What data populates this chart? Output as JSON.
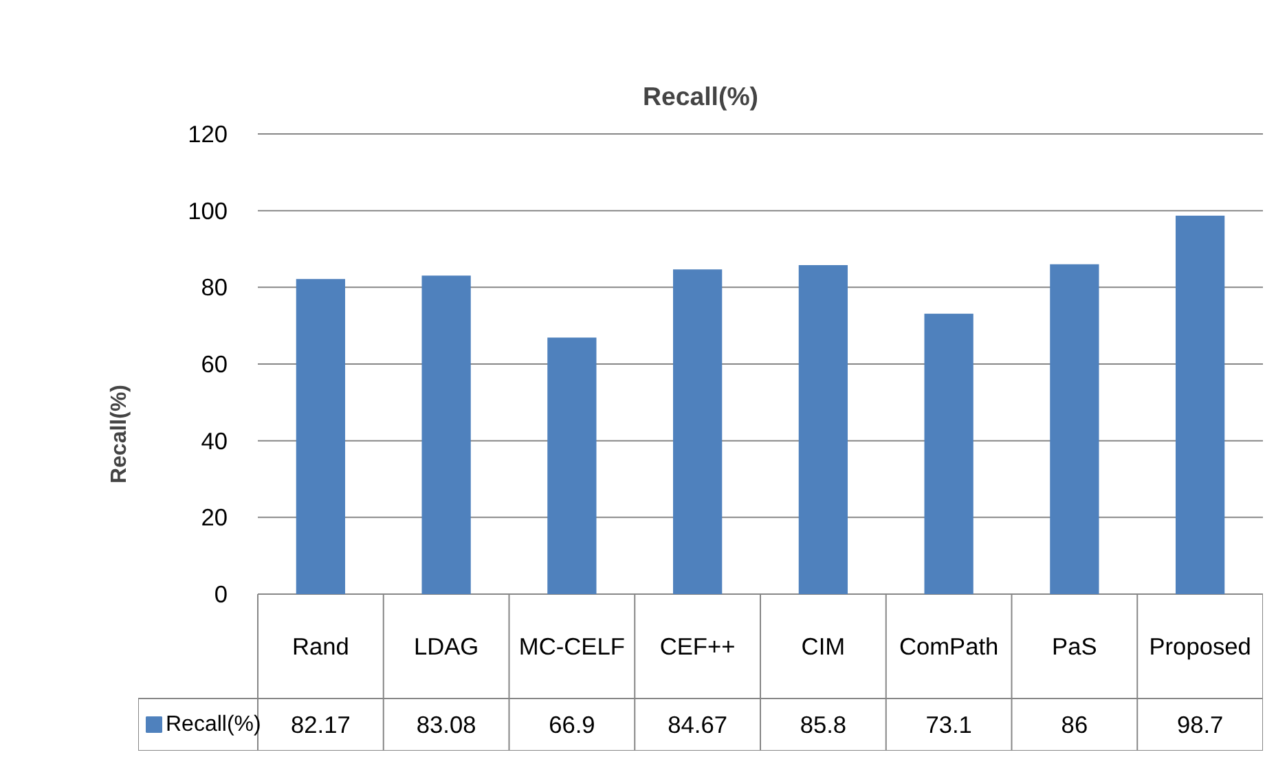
{
  "chart_data": {
    "type": "bar",
    "title": "Recall(%)",
    "ylabel": "Recall(%)",
    "categories": [
      "Rand",
      "LDAG",
      "MC-CELF",
      "CEF++",
      "CIM",
      "ComPath",
      "PaS",
      "Proposed"
    ],
    "series": [
      {
        "name": "Recall(%)",
        "color": "#4f81bd",
        "values": [
          82.17,
          83.08,
          66.9,
          84.67,
          85.8,
          73.1,
          86,
          98.7
        ]
      }
    ],
    "ylim": [
      0,
      120
    ],
    "yticks": [
      0,
      20,
      40,
      60,
      80,
      100,
      120
    ],
    "grid": "y",
    "legend": "bottom left",
    "data_labels": true
  }
}
